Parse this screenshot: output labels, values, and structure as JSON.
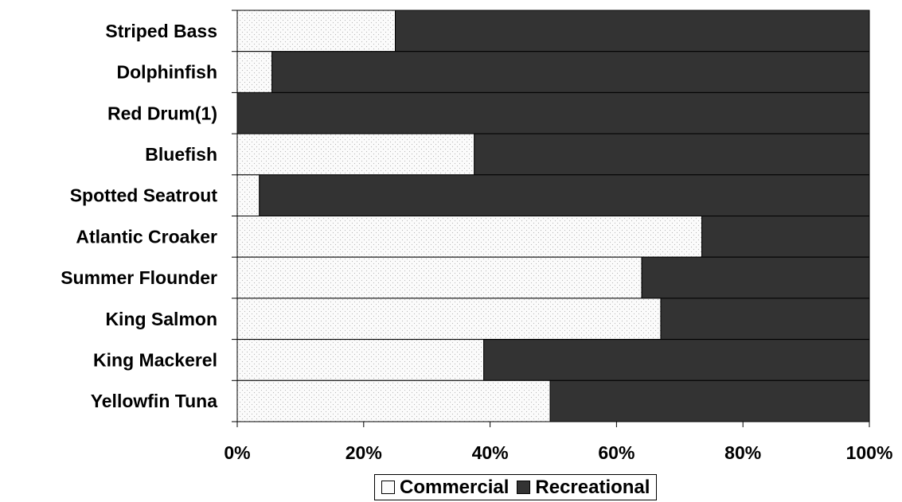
{
  "chart_data": {
    "type": "bar",
    "orientation": "horizontal",
    "stacked": "percent",
    "categories": [
      "Striped Bass",
      "Dolphinfish",
      "Red Drum(1)",
      "Bluefish",
      "Spotted Seatrout",
      "Atlantic Croaker",
      "Summer Flounder",
      "King Salmon",
      "King Mackerel",
      "Yellowfin Tuna"
    ],
    "series": [
      {
        "name": "Commercial",
        "values": [
          25,
          5.5,
          0,
          37.5,
          3.5,
          73.5,
          64,
          67,
          39,
          49.5
        ],
        "color": "#f6f6f6"
      },
      {
        "name": "Recreational",
        "values": [
          75,
          94.5,
          100,
          62.5,
          96.5,
          26.5,
          36,
          33,
          61,
          50.5
        ],
        "color": "#333333"
      }
    ],
    "x_ticks": [
      "0%",
      "20%",
      "40%",
      "60%",
      "80%",
      "100%"
    ],
    "xlim": [
      0,
      100
    ],
    "grid": false,
    "legend_position": "bottom"
  }
}
